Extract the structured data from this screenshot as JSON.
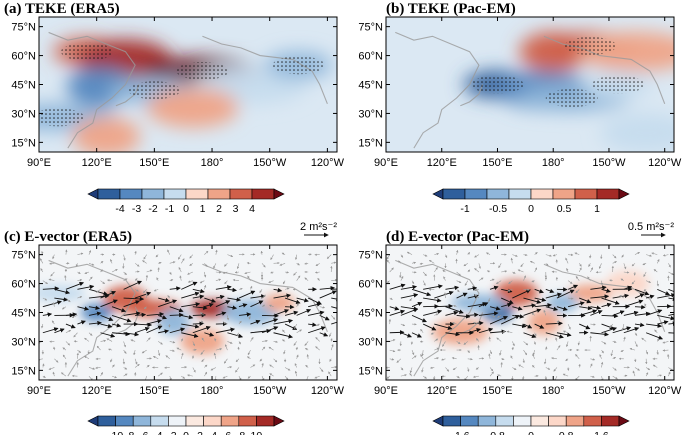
{
  "chart_data": [
    {
      "type": "heatmap",
      "panel": "a",
      "title": "(a) TEKE (ERA5)",
      "lat_labels": [
        "75°N",
        "60°N",
        "45°N",
        "30°N",
        "15°N"
      ],
      "lat_values": [
        75,
        60,
        45,
        30,
        15
      ],
      "lon_labels": [
        "90°E",
        "120°E",
        "150°E",
        "180°",
        "150°W",
        "120°W"
      ],
      "lon_values": [
        90,
        120,
        150,
        180,
        210,
        240
      ],
      "xlim": [
        90,
        245
      ],
      "ylim": [
        10,
        80
      ],
      "colorbar": {
        "ticks": [
          "-4",
          "-3",
          "-2",
          "-1",
          "0",
          "1",
          "2",
          "3",
          "4"
        ],
        "tick_values": [
          -4,
          -3,
          -2,
          -1,
          0,
          1,
          2,
          3,
          4
        ],
        "colors": [
          "#1e3c78",
          "#2f5f9c",
          "#5588c0",
          "#8fb6da",
          "#c6dcee",
          "#fcd7c8",
          "#efa488",
          "#d0604a",
          "#a42a26",
          "#6b0a14"
        ]
      },
      "features": [
        {
          "lon": 115,
          "lat": 62,
          "value": 2.5
        },
        {
          "lon": 135,
          "lat": 58,
          "value": 3.0
        },
        {
          "lon": 175,
          "lat": 52,
          "value": 4.0
        },
        {
          "lon": 122,
          "lat": 44,
          "value": -3.0
        },
        {
          "lon": 150,
          "lat": 42,
          "value": -2.0
        },
        {
          "lon": 200,
          "lat": 45,
          "value": -1.0
        },
        {
          "lon": 225,
          "lat": 55,
          "value": -1.5
        },
        {
          "lon": 170,
          "lat": 33,
          "value": 1.0
        },
        {
          "lon": 100,
          "lat": 28,
          "value": -1.5
        },
        {
          "lon": 125,
          "lat": 18,
          "value": 1.5
        }
      ]
    },
    {
      "type": "heatmap",
      "panel": "b",
      "title": "(b) TEKE (Pac-EM)",
      "lat_labels": [
        "75°N",
        "60°N",
        "45°N",
        "30°N",
        "15°N"
      ],
      "lat_values": [
        75,
        60,
        45,
        30,
        15
      ],
      "lon_labels": [
        "90°E",
        "120°E",
        "150°E",
        "180°",
        "150°W",
        "120°W"
      ],
      "lon_values": [
        90,
        120,
        150,
        180,
        210,
        240
      ],
      "xlim": [
        90,
        245
      ],
      "ylim": [
        10,
        80
      ],
      "colorbar": {
        "ticks": [
          "-1",
          "-0.5",
          "0",
          "0.5",
          "1"
        ],
        "tick_values": [
          -1,
          -0.5,
          0,
          0.5,
          1
        ],
        "colors": [
          "#1e3c78",
          "#2f5f9c",
          "#5588c0",
          "#8fb6da",
          "#c6dcee",
          "#fcd7c8",
          "#efa488",
          "#d0604a",
          "#a42a26",
          "#6b0a14"
        ]
      },
      "features": [
        {
          "lon": 150,
          "lat": 45,
          "value": -1.0
        },
        {
          "lon": 175,
          "lat": 42,
          "value": -0.7
        },
        {
          "lon": 190,
          "lat": 38,
          "value": -0.4
        },
        {
          "lon": 180,
          "lat": 62,
          "value": 0.7
        },
        {
          "lon": 200,
          "lat": 65,
          "value": 0.5
        },
        {
          "lon": 225,
          "lat": 62,
          "value": 0.3
        },
        {
          "lon": 215,
          "lat": 45,
          "value": -0.2
        },
        {
          "lon": 230,
          "lat": 20,
          "value": -0.2
        }
      ]
    },
    {
      "type": "heatmap",
      "panel": "c",
      "title": "(c) E-vector (ERA5)",
      "reference_vector": "2 m²s⁻²",
      "lat_labels": [
        "75°N",
        "60°N",
        "45°N",
        "30°N",
        "15°N"
      ],
      "lat_values": [
        75,
        60,
        45,
        30,
        15
      ],
      "lon_labels": [
        "90°E",
        "120°E",
        "150°E",
        "180°",
        "150°W",
        "120°W"
      ],
      "lon_values": [
        90,
        120,
        150,
        180,
        210,
        240
      ],
      "xlim": [
        90,
        245
      ],
      "ylim": [
        10,
        80
      ],
      "colorbar": {
        "ticks": [
          "-10",
          "-8",
          "-6",
          "-4",
          "-2",
          "0",
          "2",
          "4",
          "6",
          "8",
          "10"
        ],
        "tick_values": [
          -10,
          -8,
          -6,
          -4,
          -2,
          0,
          2,
          4,
          6,
          8,
          10
        ],
        "colors": [
          "#1e3c78",
          "#2f5f9c",
          "#5588c0",
          "#8fb6da",
          "#c6dcee",
          "#eef3f8",
          "#fbe9e0",
          "#fcd7c8",
          "#efa488",
          "#d0604a",
          "#a42a26",
          "#6b0a14"
        ]
      },
      "features": [
        {
          "lon": 120,
          "lat": 45,
          "value": -8
        },
        {
          "lon": 135,
          "lat": 52,
          "value": 6
        },
        {
          "lon": 150,
          "lat": 47,
          "value": 6
        },
        {
          "lon": 160,
          "lat": 40,
          "value": -6
        },
        {
          "lon": 180,
          "lat": 47,
          "value": 8
        },
        {
          "lon": 200,
          "lat": 45,
          "value": -6
        },
        {
          "lon": 215,
          "lat": 50,
          "value": 4
        },
        {
          "lon": 175,
          "lat": 30,
          "value": 4
        },
        {
          "lon": 100,
          "lat": 55,
          "value": -4
        }
      ]
    },
    {
      "type": "heatmap",
      "panel": "d",
      "title": "(d) E-vector (Pac-EM)",
      "reference_vector": "0.5 m²s⁻²",
      "lat_labels": [
        "75°N",
        "60°N",
        "45°N",
        "30°N",
        "15°N"
      ],
      "lat_values": [
        75,
        60,
        45,
        30,
        15
      ],
      "lon_labels": [
        "90°E",
        "120°E",
        "150°E",
        "180°",
        "150°W",
        "120°W"
      ],
      "lon_values": [
        90,
        120,
        150,
        180,
        210,
        240
      ],
      "xlim": [
        90,
        245
      ],
      "ylim": [
        10,
        80
      ],
      "colorbar": {
        "ticks": [
          "-1.6",
          "-0.8",
          "0",
          "0.8",
          "1.6"
        ],
        "tick_values": [
          -1.6,
          -0.8,
          0,
          0.8,
          1.6
        ],
        "colors": [
          "#1e3c78",
          "#2f5f9c",
          "#5588c0",
          "#8fb6da",
          "#c6dcee",
          "#eef3f8",
          "#fbe9e0",
          "#fcd7c8",
          "#efa488",
          "#d0604a",
          "#a42a26",
          "#6b0a14"
        ]
      },
      "features": [
        {
          "lon": 150,
          "lat": 45,
          "value": -1.6
        },
        {
          "lon": 160,
          "lat": 55,
          "value": 1.2
        },
        {
          "lon": 140,
          "lat": 50,
          "value": -0.8
        },
        {
          "lon": 175,
          "lat": 40,
          "value": 0.8
        },
        {
          "lon": 200,
          "lat": 55,
          "value": 0.8
        },
        {
          "lon": 130,
          "lat": 35,
          "value": 0.8
        },
        {
          "lon": 185,
          "lat": 50,
          "value": -0.8
        },
        {
          "lon": 220,
          "lat": 60,
          "value": 0.4
        }
      ]
    }
  ]
}
